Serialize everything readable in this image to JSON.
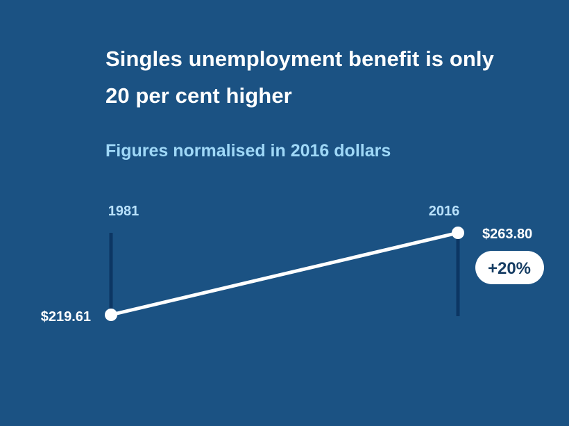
{
  "header": {
    "title": "Singles unemployment benefit is only 20 per cent higher",
    "subtitle": "Figures normalised in 2016 dollars"
  },
  "colors": {
    "background": "#1b5283",
    "line": "#ffffff",
    "year_bar": "#0c3663",
    "year_label": "#b9e1fb",
    "subtitle": "#9fd8f7",
    "badge_background": "#ffffff",
    "badge_text": "#163d63"
  },
  "chart_data": {
    "type": "line",
    "title": "Singles unemployment benefit is only 20 per cent higher",
    "subtitle": "Figures normalised in 2016 dollars",
    "categories": [
      "1981",
      "2016"
    ],
    "values": [
      219.61,
      263.8
    ],
    "value_labels": [
      "$219.61",
      "$263.80"
    ],
    "change_label": "+20%",
    "grid": false
  }
}
